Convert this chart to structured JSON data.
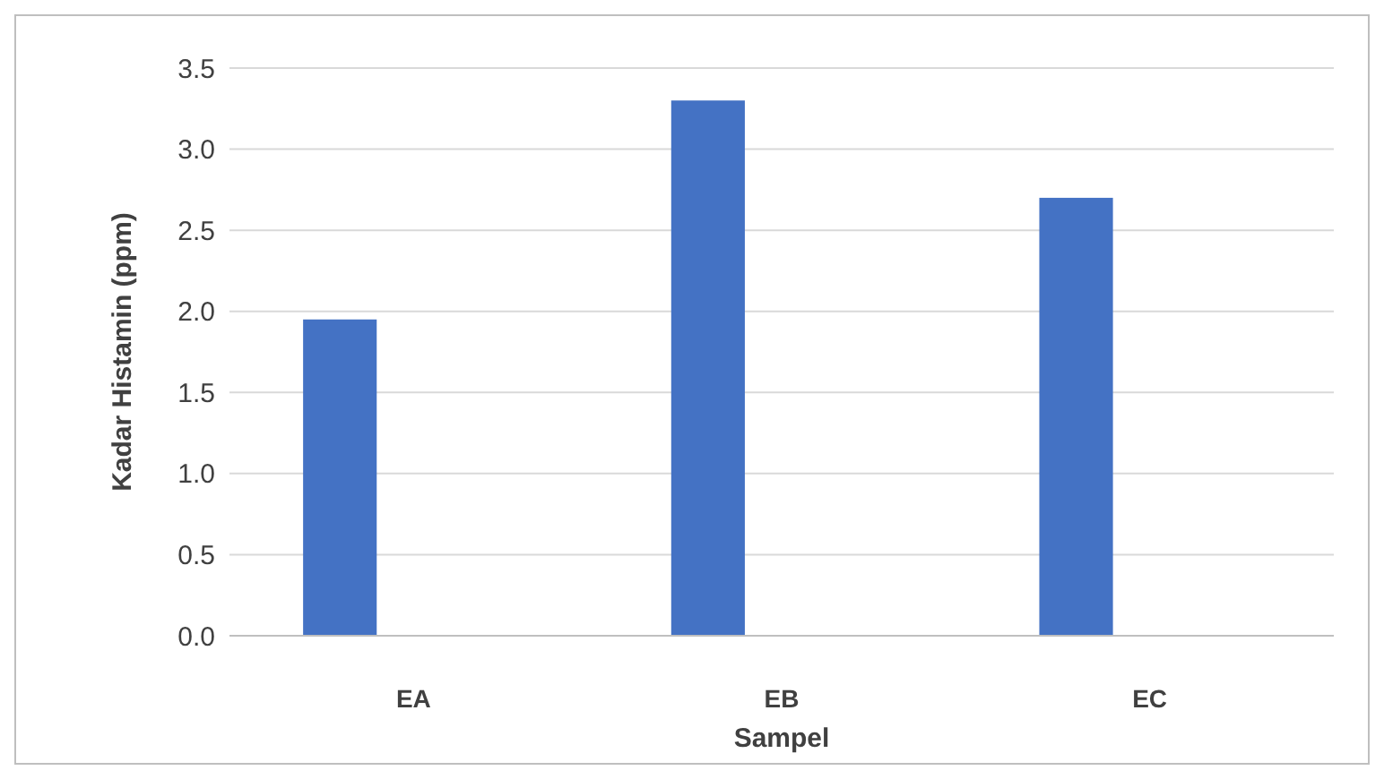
{
  "chart_data": {
    "type": "bar",
    "xlabel": "Sampel",
    "ylabel": "Kadar Histamin (ppm)",
    "categories": [
      "EA",
      "EB",
      "EC"
    ],
    "series": [
      {
        "color": "#4472c4",
        "values": [
          1.95,
          3.3,
          2.7
        ]
      }
    ],
    "ylim": [
      0,
      3.5
    ],
    "yticks": [
      {
        "value": 0,
        "label": "0.0"
      },
      {
        "value": 0.5,
        "label": "0.5"
      },
      {
        "value": 1,
        "label": "1.0"
      },
      {
        "value": 1.5,
        "label": "1.5"
      },
      {
        "value": 2,
        "label": "2.0"
      },
      {
        "value": 2.5,
        "label": "2.5"
      },
      {
        "value": 3,
        "label": "3.0"
      },
      {
        "value": 3.5,
        "label": "3.5"
      }
    ],
    "grid": "y"
  }
}
